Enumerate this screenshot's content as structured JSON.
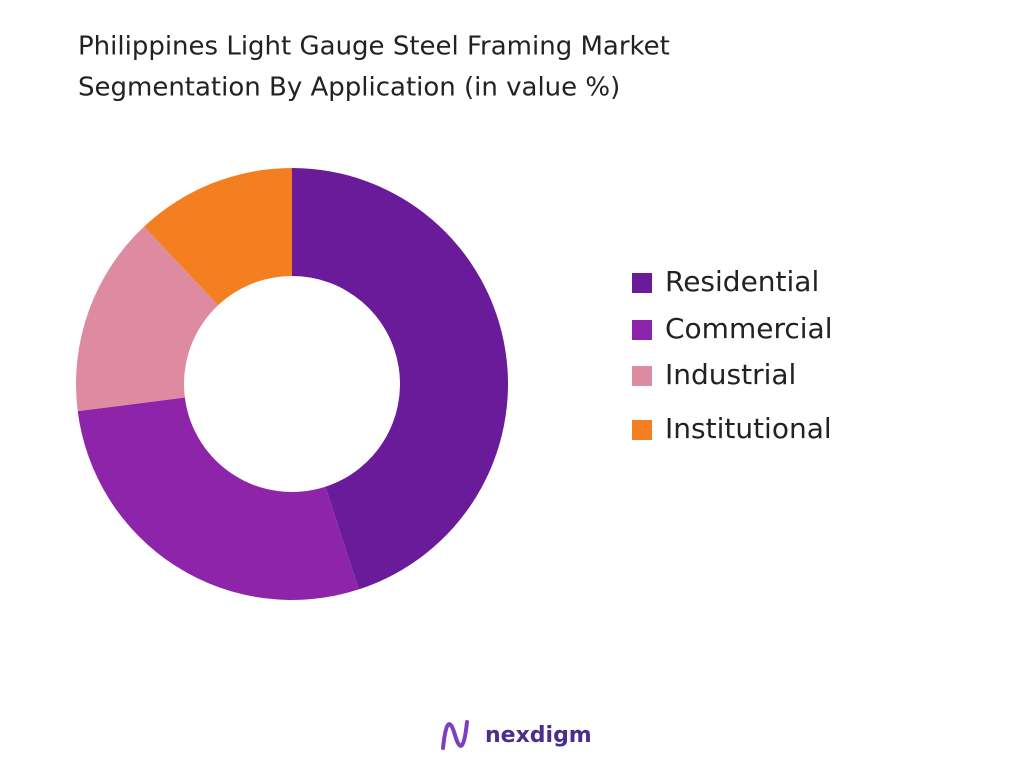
{
  "chart_data": {
    "type": "donut",
    "title": [
      "Philippines Light Gauge Steel Framing Market",
      "Segmentation By Application (in value %)"
    ],
    "categories": [
      "Residential",
      "Commercial",
      "Industrial",
      "Institutional"
    ],
    "values": [
      45,
      28,
      15,
      12
    ],
    "colors": [
      "#6a1b9a",
      "#8e24aa",
      "#de8aa0",
      "#f47f20"
    ],
    "legend": "right"
  },
  "footer": {
    "brand": "nexdigm"
  }
}
